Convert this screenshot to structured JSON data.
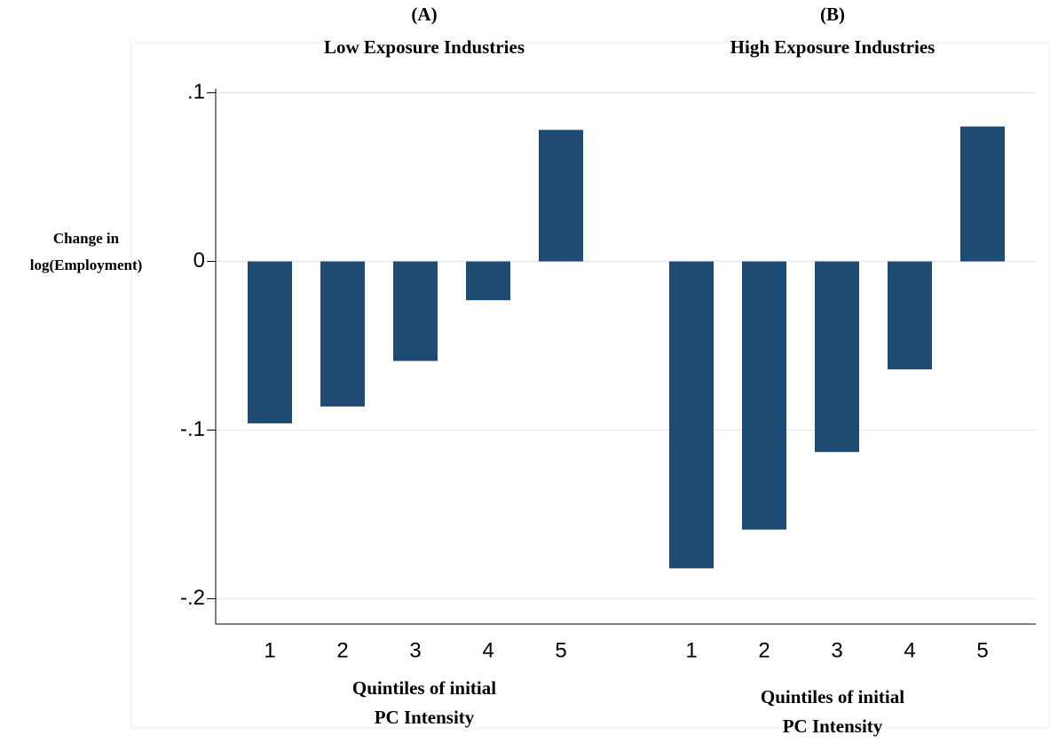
{
  "chart_data": [
    {
      "type": "bar",
      "title": "(A)",
      "subtitle": "Low Exposure Industries",
      "ylabel": [
        "Change in",
        "log(Employment)"
      ],
      "xlabel": [
        "Quintiles of initial",
        "PC Intensity"
      ],
      "categories": [
        "1",
        "2",
        "3",
        "4",
        "5"
      ],
      "values": [
        -0.096,
        -0.086,
        -0.059,
        -0.023,
        0.078
      ],
      "color": "#1f4a72",
      "ylim": [
        -0.215,
        0.125
      ],
      "yticks": [
        {
          "value": 0.1,
          "label": ".1"
        },
        0,
        {
          "value": -0.1,
          "label": "-.1"
        },
        {
          "value": -0.2,
          "label": "-.2"
        }
      ],
      "grid": true
    },
    {
      "type": "bar",
      "title": "(B)",
      "subtitle": "High Exposure Industries",
      "xlabel": [
        "Quintiles of initial",
        "PC Intensity"
      ],
      "categories": [
        "1",
        "2",
        "3",
        "4",
        "5"
      ],
      "values": [
        -0.182,
        -0.159,
        -0.113,
        -0.064,
        0.08
      ],
      "color": "#1f4a72",
      "ylim": [
        -0.215,
        0.125
      ],
      "yticks": [
        0.1,
        0,
        -0.1,
        -0.2
      ],
      "grid": true
    }
  ]
}
